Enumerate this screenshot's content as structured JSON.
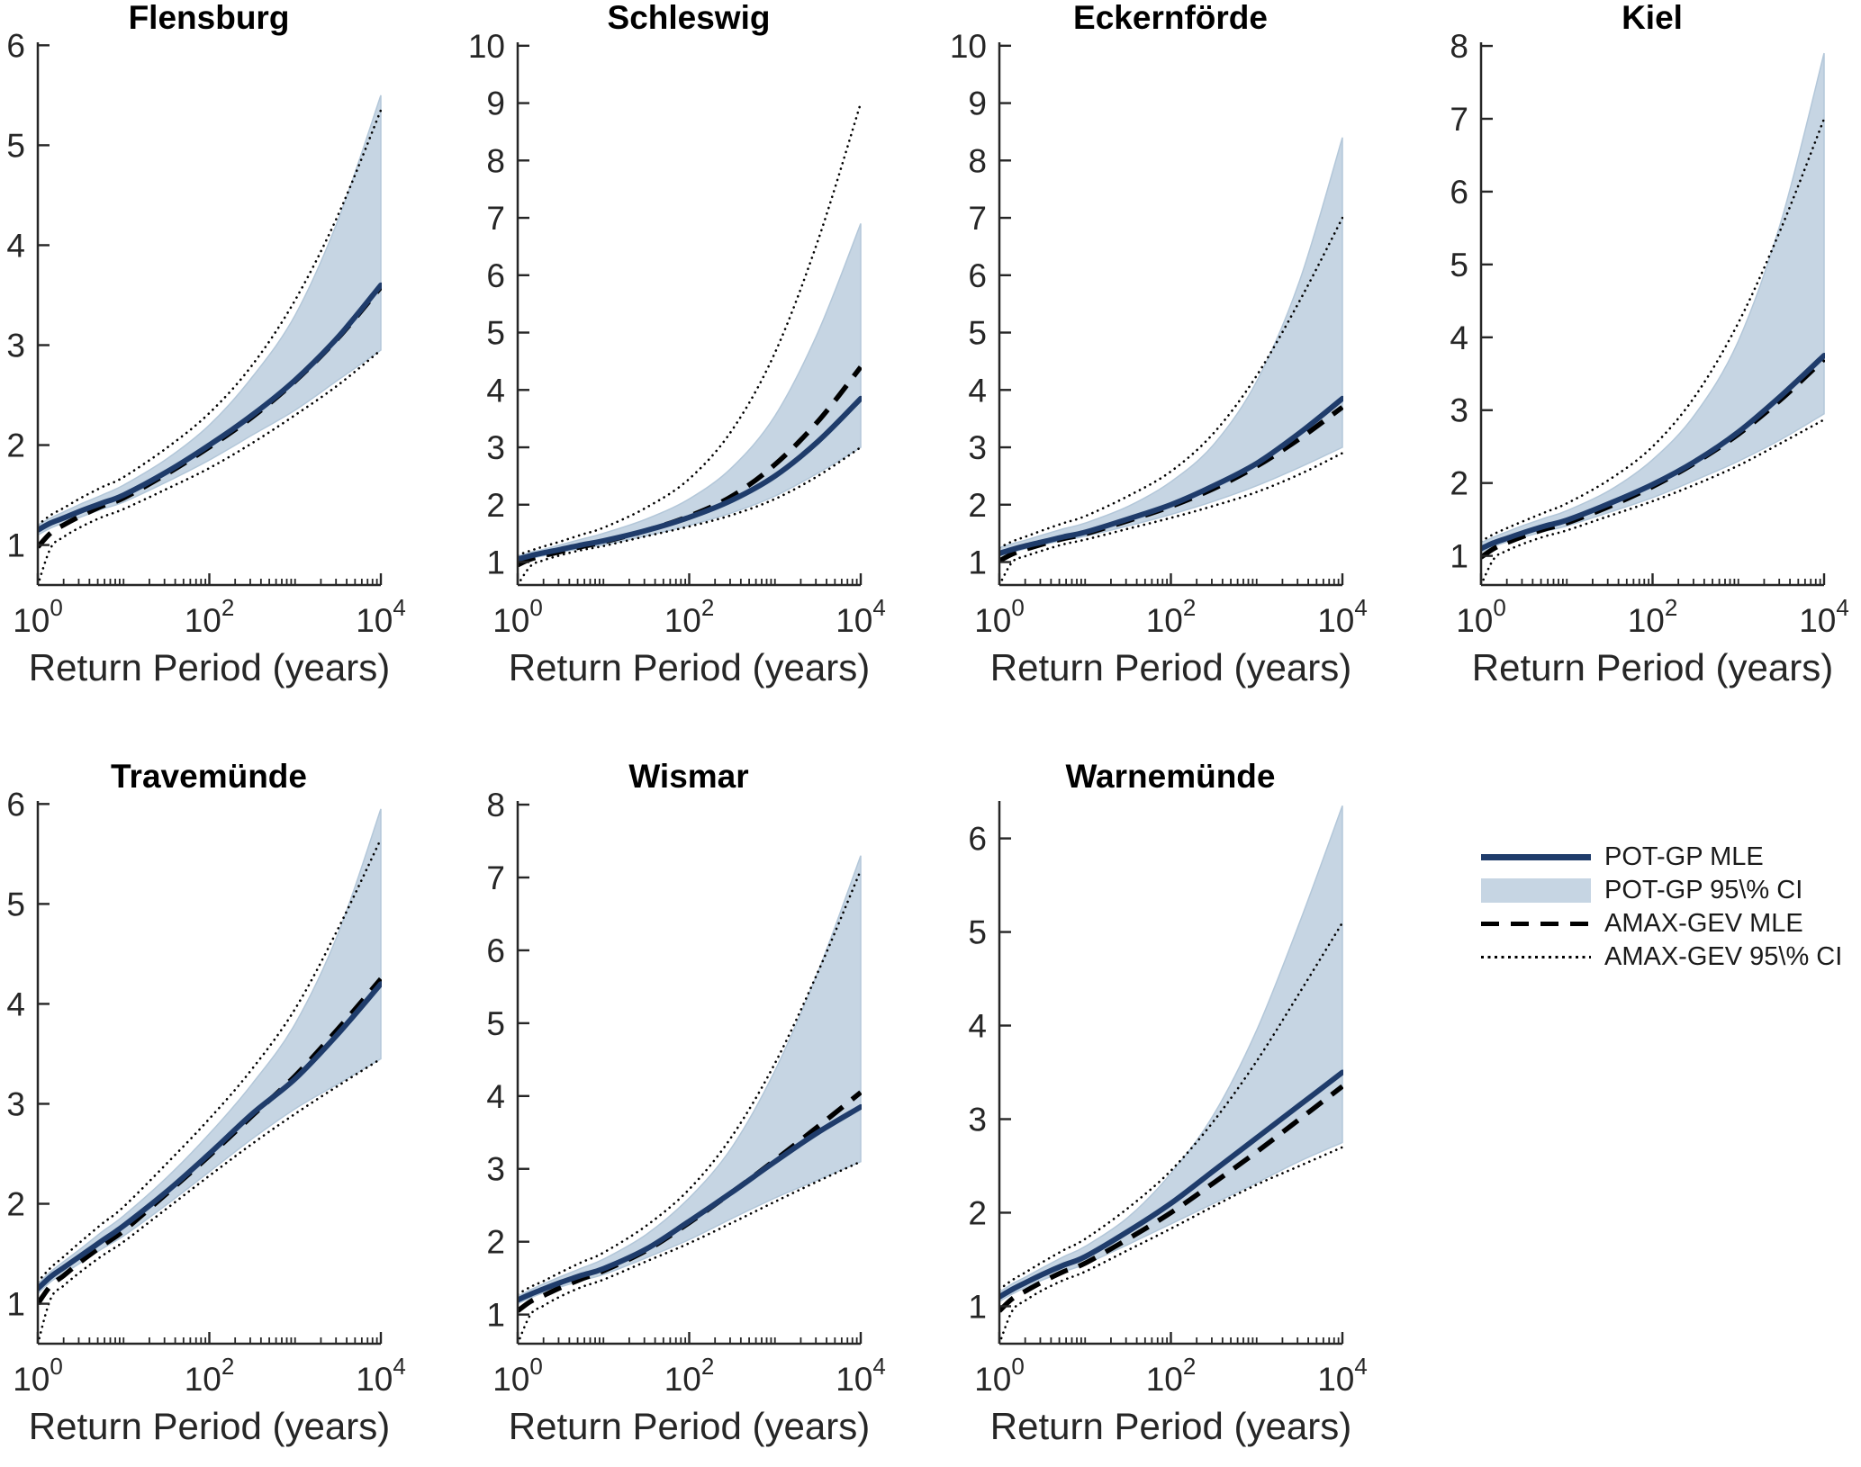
{
  "figure": {
    "xlabel": "Return Period (years)",
    "background": "#ffffff"
  },
  "colors": {
    "pot_line": "#1f3c6b",
    "pot_ci_fill": "#c6d5e3",
    "pot_ci_edge": "#b3c7d9",
    "gev_line": "#000000",
    "axis": "#262626",
    "text": "#262626",
    "title": "#000000"
  },
  "legend": {
    "items": [
      {
        "label": "POT-GP MLE",
        "glyph": "solid-navy-line"
      },
      {
        "label": "POT-GP 95\\% CI",
        "glyph": "lightblue-patch"
      },
      {
        "label": "AMAX-GEV MLE",
        "glyph": "black-dashed-line"
      },
      {
        "label": "AMAX-GEV 95\\% CI",
        "glyph": "black-dotted-line"
      }
    ]
  },
  "chart_data": {
    "type": "line",
    "xscale": "log10",
    "xlabel": "Return Period (years)",
    "xlim": [
      1,
      10000
    ],
    "x_log10": [
      0,
      0.15,
      0.3,
      0.5,
      0.75,
      1,
      1.5,
      2,
      2.5,
      3,
      3.5,
      4
    ],
    "xticks": [
      {
        "log": 0,
        "base": "10",
        "exp": "0"
      },
      {
        "log": 2,
        "base": "10",
        "exp": "2"
      },
      {
        "log": 4,
        "base": "10",
        "exp": "4"
      }
    ],
    "minor_xticks": "2-9 within each decade plus 10^1 and 10^3",
    "grid": false,
    "legend_position": "empty cell, row 2 column 4",
    "series_keys": [
      "pot_mle",
      "pot_hi",
      "pot_lo",
      "gev_mle",
      "gev_hi",
      "gev_lo"
    ],
    "series_names": {
      "pot_mle": "POT-GP MLE",
      "pot_hi": "POT-GP 95\\% CI upper",
      "pot_lo": "POT-GP 95\\% CI lower",
      "gev_mle": "AMAX-GEV MLE",
      "gev_hi": "AMAX-GEV 95\\% CI upper",
      "gev_lo": "AMAX-GEV 95\\% CI lower"
    },
    "stations": [
      {
        "id": "flensburg",
        "name": "Flensburg",
        "row": 0,
        "col": 0,
        "ylim": [
          0.6,
          6.03
        ],
        "ytick_max": 6,
        "series": {
          "pot_mle": [
            1.15,
            1.22,
            1.27,
            1.34,
            1.42,
            1.5,
            1.73,
            2.0,
            2.3,
            2.65,
            3.08,
            3.6
          ],
          "pot_hi": [
            1.2,
            1.27,
            1.33,
            1.41,
            1.5,
            1.6,
            1.86,
            2.2,
            2.68,
            3.3,
            4.25,
            5.5
          ],
          "pot_lo": [
            1.1,
            1.17,
            1.22,
            1.28,
            1.36,
            1.43,
            1.63,
            1.85,
            2.1,
            2.35,
            2.65,
            2.95
          ],
          "gev_mle": [
            0.98,
            1.12,
            1.2,
            1.29,
            1.39,
            1.47,
            1.71,
            1.98,
            2.28,
            2.64,
            3.07,
            3.58
          ],
          "gev_hi": [
            1.2,
            1.3,
            1.37,
            1.47,
            1.58,
            1.68,
            1.97,
            2.32,
            2.8,
            3.45,
            4.3,
            5.35
          ],
          "gev_lo": [
            0.6,
            0.97,
            1.08,
            1.18,
            1.28,
            1.36,
            1.56,
            1.77,
            2.02,
            2.3,
            2.6,
            2.95
          ]
        }
      },
      {
        "id": "schleswig",
        "name": "Schleswig",
        "row": 0,
        "col": 1,
        "ylim": [
          0.6,
          10.06
        ],
        "ytick_max": 10,
        "series": {
          "pot_mle": [
            1.05,
            1.11,
            1.16,
            1.22,
            1.3,
            1.37,
            1.55,
            1.78,
            2.08,
            2.5,
            3.1,
            3.85
          ],
          "pot_hi": [
            1.1,
            1.17,
            1.22,
            1.3,
            1.4,
            1.5,
            1.75,
            2.1,
            2.65,
            3.55,
            5.0,
            6.9
          ],
          "pot_lo": [
            1.0,
            1.06,
            1.11,
            1.17,
            1.24,
            1.3,
            1.46,
            1.64,
            1.86,
            2.15,
            2.55,
            3.0
          ],
          "gev_mle": [
            0.95,
            1.05,
            1.11,
            1.18,
            1.27,
            1.35,
            1.55,
            1.8,
            2.15,
            2.7,
            3.45,
            4.4
          ],
          "gev_hi": [
            1.12,
            1.2,
            1.27,
            1.36,
            1.48,
            1.6,
            1.95,
            2.45,
            3.3,
            4.65,
            6.6,
            9.0
          ],
          "gev_lo": [
            0.6,
            0.93,
            1.03,
            1.12,
            1.21,
            1.28,
            1.45,
            1.62,
            1.82,
            2.1,
            2.5,
            3.0
          ]
        }
      },
      {
        "id": "eckernfoerde",
        "name": "Eckernförde",
        "row": 0,
        "col": 2,
        "ylim": [
          0.6,
          10.06
        ],
        "ytick_max": 10,
        "series": {
          "pot_mle": [
            1.15,
            1.22,
            1.28,
            1.35,
            1.44,
            1.52,
            1.75,
            2.0,
            2.33,
            2.72,
            3.25,
            3.85
          ],
          "pot_hi": [
            1.25,
            1.32,
            1.38,
            1.47,
            1.58,
            1.68,
            1.97,
            2.4,
            3.05,
            4.15,
            5.9,
            8.4
          ],
          "pot_lo": [
            1.1,
            1.17,
            1.23,
            1.3,
            1.38,
            1.45,
            1.63,
            1.83,
            2.06,
            2.33,
            2.65,
            3.0
          ],
          "gev_mle": [
            1.02,
            1.14,
            1.22,
            1.31,
            1.41,
            1.49,
            1.72,
            1.97,
            2.28,
            2.67,
            3.15,
            3.7
          ],
          "gev_hi": [
            1.25,
            1.36,
            1.44,
            1.55,
            1.68,
            1.8,
            2.15,
            2.58,
            3.25,
            4.25,
            5.55,
            7.0
          ],
          "gev_lo": [
            0.6,
            1.0,
            1.1,
            1.2,
            1.31,
            1.39,
            1.58,
            1.77,
            1.98,
            2.22,
            2.53,
            2.9
          ]
        }
      },
      {
        "id": "kiel",
        "name": "Kiel",
        "row": 0,
        "col": 3,
        "ylim": [
          0.6,
          8.05
        ],
        "ytick_max": 8,
        "series": {
          "pot_mle": [
            1.1,
            1.18,
            1.24,
            1.32,
            1.41,
            1.49,
            1.72,
            1.98,
            2.3,
            2.7,
            3.2,
            3.75
          ],
          "pot_hi": [
            1.18,
            1.26,
            1.33,
            1.42,
            1.52,
            1.62,
            1.9,
            2.32,
            2.95,
            3.95,
            5.6,
            7.9
          ],
          "pot_lo": [
            1.05,
            1.13,
            1.19,
            1.26,
            1.34,
            1.41,
            1.6,
            1.8,
            2.04,
            2.3,
            2.6,
            2.95
          ],
          "gev_mle": [
            0.98,
            1.1,
            1.18,
            1.27,
            1.37,
            1.45,
            1.68,
            1.95,
            2.28,
            2.67,
            3.15,
            3.7
          ],
          "gev_hi": [
            1.2,
            1.3,
            1.38,
            1.48,
            1.6,
            1.72,
            2.05,
            2.5,
            3.2,
            4.2,
            5.5,
            7.0
          ],
          "gev_lo": [
            0.6,
            0.96,
            1.07,
            1.17,
            1.27,
            1.35,
            1.55,
            1.75,
            1.98,
            2.24,
            2.55,
            2.87
          ]
        }
      },
      {
        "id": "travemuende",
        "name": "Travemünde",
        "row": 1,
        "col": 0,
        "ylim": [
          0.6,
          6.03
        ],
        "ytick_max": 6,
        "series": {
          "pot_mle": [
            1.15,
            1.27,
            1.36,
            1.48,
            1.63,
            1.78,
            2.12,
            2.5,
            2.9,
            3.25,
            3.7,
            4.2
          ],
          "pot_hi": [
            1.2,
            1.32,
            1.42,
            1.55,
            1.72,
            1.88,
            2.26,
            2.7,
            3.2,
            3.8,
            4.7,
            5.95
          ],
          "pot_lo": [
            1.1,
            1.22,
            1.3,
            1.41,
            1.55,
            1.68,
            1.99,
            2.32,
            2.65,
            2.95,
            3.2,
            3.45
          ],
          "gev_mle": [
            1.0,
            1.18,
            1.28,
            1.42,
            1.58,
            1.73,
            2.1,
            2.48,
            2.88,
            3.28,
            3.75,
            4.25
          ],
          "gev_hi": [
            1.22,
            1.36,
            1.47,
            1.62,
            1.8,
            1.97,
            2.4,
            2.85,
            3.35,
            3.95,
            4.75,
            5.65
          ],
          "gev_lo": [
            0.6,
            1.05,
            1.18,
            1.32,
            1.48,
            1.62,
            1.95,
            2.28,
            2.6,
            2.9,
            3.18,
            3.45
          ]
        }
      },
      {
        "id": "wismar",
        "name": "Wismar",
        "row": 1,
        "col": 1,
        "ylim": [
          0.6,
          8.05
        ],
        "ytick_max": 8,
        "series": {
          "pot_mle": [
            1.2,
            1.28,
            1.35,
            1.44,
            1.54,
            1.63,
            1.9,
            2.28,
            2.68,
            3.1,
            3.5,
            3.85
          ],
          "pot_hi": [
            1.25,
            1.34,
            1.42,
            1.52,
            1.64,
            1.76,
            2.1,
            2.6,
            3.3,
            4.35,
            5.7,
            7.3
          ],
          "pot_lo": [
            1.15,
            1.23,
            1.3,
            1.38,
            1.47,
            1.55,
            1.78,
            2.03,
            2.32,
            2.6,
            2.85,
            3.1
          ],
          "gev_mle": [
            1.05,
            1.18,
            1.26,
            1.37,
            1.49,
            1.6,
            1.88,
            2.26,
            2.68,
            3.12,
            3.58,
            4.05
          ],
          "gev_hi": [
            1.28,
            1.38,
            1.46,
            1.58,
            1.72,
            1.85,
            2.22,
            2.72,
            3.45,
            4.45,
            5.7,
            7.1
          ],
          "gev_lo": [
            0.6,
            1.0,
            1.12,
            1.25,
            1.38,
            1.48,
            1.73,
            1.98,
            2.26,
            2.55,
            2.83,
            3.1
          ]
        }
      },
      {
        "id": "warnemuende",
        "name": "Warnemünde",
        "row": 1,
        "col": 2,
        "ylim": [
          0.6,
          6.4
        ],
        "ytick_max": 6,
        "series": {
          "pot_mle": [
            1.1,
            1.18,
            1.25,
            1.34,
            1.44,
            1.53,
            1.8,
            2.1,
            2.45,
            2.8,
            3.15,
            3.5
          ],
          "pot_hi": [
            1.15,
            1.24,
            1.31,
            1.41,
            1.53,
            1.64,
            1.95,
            2.42,
            3.05,
            3.95,
            5.1,
            6.35
          ],
          "pot_lo": [
            1.05,
            1.13,
            1.2,
            1.28,
            1.37,
            1.45,
            1.66,
            1.88,
            2.1,
            2.32,
            2.55,
            2.75
          ],
          "gev_mle": [
            0.95,
            1.08,
            1.16,
            1.26,
            1.37,
            1.46,
            1.72,
            2.0,
            2.32,
            2.65,
            3.0,
            3.35
          ],
          "gev_hi": [
            1.18,
            1.28,
            1.36,
            1.47,
            1.6,
            1.72,
            2.05,
            2.45,
            2.98,
            3.62,
            4.35,
            5.1
          ],
          "gev_lo": [
            0.6,
            0.95,
            1.06,
            1.17,
            1.28,
            1.37,
            1.6,
            1.83,
            2.07,
            2.3,
            2.5,
            2.7
          ]
        }
      }
    ]
  }
}
